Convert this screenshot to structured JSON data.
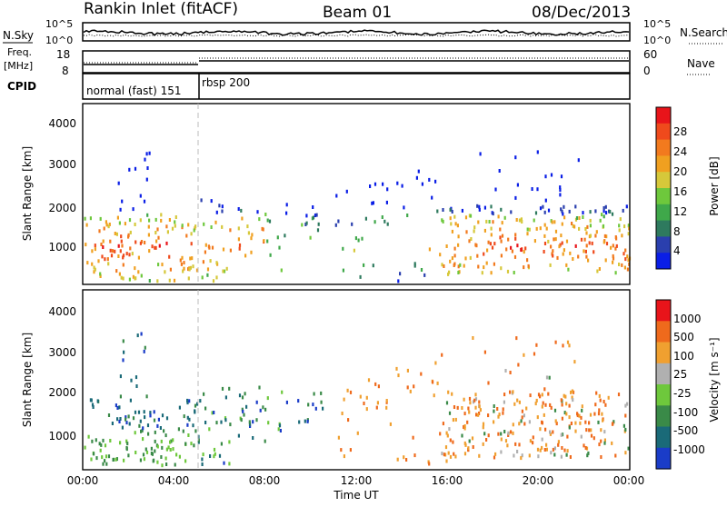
{
  "header": {
    "station": "Rankin Inlet (fitACF)",
    "beam": "Beam 01",
    "date": "08/Dec/2013"
  },
  "summary_panels": {
    "nsky": {
      "left_label": "N.Sky",
      "left_ticks": [
        "10^5",
        "10^0"
      ],
      "right_ticks": [
        "10^5",
        "10^0"
      ],
      "right_label": "N.Search"
    },
    "freq": {
      "left_label_1": "Freq.",
      "left_label_2": "[MHz]",
      "left_ticks": [
        "18",
        "8"
      ],
      "right_ticks": [
        "60",
        "0"
      ],
      "right_label": "Nave"
    },
    "cpid": {
      "label": "CPID",
      "modes": [
        "normal (fast) 151",
        "rbsp 200"
      ]
    }
  },
  "chart_data": [
    {
      "type": "heatmap",
      "name": "power",
      "ylabel": "Slant Range [km]",
      "yticks": [
        "1000",
        "2000",
        "3000",
        "4000"
      ],
      "ylim": [
        180,
        4500
      ],
      "xlim": [
        0,
        24
      ],
      "xticks": [
        "00:00",
        "04:00",
        "08:00",
        "12:00",
        "16:00",
        "20:00",
        "00:00"
      ],
      "colorbar": {
        "label": "Power [dB]",
        "ticks": [
          "4",
          "8",
          "12",
          "16",
          "20",
          "24",
          "28"
        ],
        "colors": [
          "#0a1ee6",
          "#2a3fae",
          "#2e7a5e",
          "#3fa84a",
          "#6ec83c",
          "#d6c83a",
          "#f0a020",
          "#f27a1e",
          "#ef4a1c",
          "#e8141a"
        ]
      }
    },
    {
      "type": "heatmap",
      "name": "velocity",
      "ylabel": "Slant Range [km]",
      "yticks": [
        "1000",
        "2000",
        "3000",
        "4000"
      ],
      "ylim": [
        180,
        4500
      ],
      "xlim": [
        0,
        24
      ],
      "xticks": [
        "00:00",
        "04:00",
        "08:00",
        "12:00",
        "16:00",
        "20:00",
        "00:00"
      ],
      "xlabel": "Time UT",
      "colorbar": {
        "label": "Velocity [m s⁻¹]",
        "ticks": [
          "1000",
          "500",
          "100",
          "25",
          "-25",
          "-100",
          "-500",
          "-1000"
        ],
        "colors": [
          "#1a3cc8",
          "#1a6a78",
          "#3a8a48",
          "#6ec83c",
          "#b0b0b0",
          "#f0a030",
          "#ef6a1c",
          "#e8141a"
        ]
      }
    }
  ]
}
